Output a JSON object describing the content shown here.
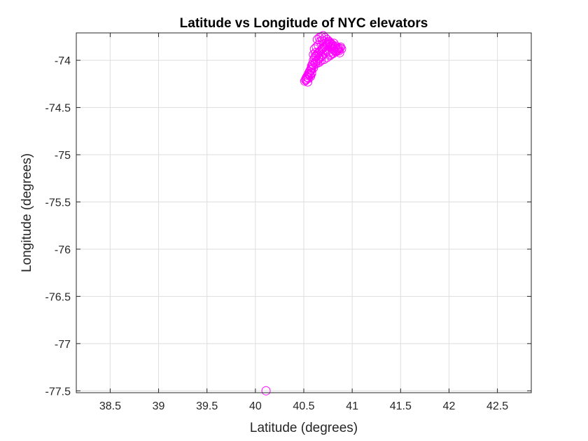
{
  "chart_data": {
    "type": "scatter",
    "title": "Latitude vs Longitude of NYC elevators",
    "xlabel": "Latitude (degrees)",
    "ylabel": "Longitude (degrees)",
    "xlim": [
      38.15,
      42.85
    ],
    "ylim": [
      -77.52,
      -73.71
    ],
    "xticks": [
      38.5,
      39,
      39.5,
      40,
      40.5,
      41,
      41.5,
      42,
      42.5
    ],
    "yticks": [
      -74,
      -74.5,
      -75,
      -75.5,
      -76,
      -76.5,
      -77,
      -77.5
    ],
    "xtick_labels": [
      "38.5",
      "39",
      "39.5",
      "40",
      "40.5",
      "41",
      "41.5",
      "42",
      "42.5"
    ],
    "ytick_labels": [
      "-74",
      "-74.5",
      "-75",
      "-75.5",
      "-76",
      "-76.5",
      "-77",
      "-77.5"
    ],
    "grid": true,
    "marker": "circle",
    "marker_color": "#ff00ff",
    "series": [
      {
        "x": [
          40.11,
          40.51,
          40.52,
          40.53,
          40.54,
          40.55,
          40.56,
          40.57,
          40.58,
          40.59,
          40.6,
          40.61,
          40.62,
          40.63,
          40.64,
          40.65,
          40.66,
          40.67,
          40.68,
          40.69,
          40.7,
          40.71,
          40.72,
          40.73,
          40.74,
          40.75,
          40.76,
          40.77,
          40.78,
          40.79,
          40.8,
          40.81,
          40.82,
          40.83,
          40.84,
          40.85,
          40.86,
          40.87,
          40.88,
          40.89,
          40.6,
          40.62,
          40.64,
          40.66,
          40.68,
          40.7,
          40.72,
          40.74,
          40.76,
          40.78,
          40.8,
          40.82,
          40.84,
          40.86,
          40.62,
          40.64,
          40.66,
          40.68,
          40.7,
          40.72,
          40.74,
          40.76,
          40.78,
          40.8,
          40.58,
          40.6,
          40.62,
          40.64,
          40.66,
          40.56,
          40.58,
          40.6,
          40.54,
          40.56,
          40.58,
          40.53,
          40.55,
          40.57,
          40.52,
          40.54,
          40.56,
          40.58,
          40.61,
          40.63,
          40.65,
          40.67,
          40.69,
          40.71,
          40.73,
          40.75,
          40.77,
          40.79,
          40.81,
          40.83,
          40.85,
          40.87,
          40.65,
          40.68,
          40.71,
          40.74,
          40.77,
          40.8
        ],
        "y": [
          -77.5,
          -74.22,
          -74.2,
          -74.18,
          -74.16,
          -74.14,
          -74.12,
          -74.1,
          -74.08,
          -74.04,
          -74.0,
          -73.98,
          -73.96,
          -73.95,
          -73.93,
          -73.92,
          -73.91,
          -73.9,
          -73.89,
          -73.88,
          -73.87,
          -73.86,
          -73.85,
          -73.84,
          -73.83,
          -73.82,
          -73.81,
          -73.83,
          -73.85,
          -73.87,
          -73.88,
          -73.89,
          -73.9,
          -73.91,
          -73.9,
          -73.89,
          -73.88,
          -73.87,
          -73.86,
          -73.88,
          -73.94,
          -73.92,
          -73.78,
          -73.76,
          -73.75,
          -73.74,
          -73.76,
          -73.78,
          -73.8,
          -73.82,
          -73.84,
          -73.86,
          -73.88,
          -73.9,
          -74.02,
          -74.0,
          -73.98,
          -73.96,
          -73.94,
          -73.92,
          -73.9,
          -73.92,
          -73.94,
          -73.92,
          -74.06,
          -74.05,
          -74.04,
          -74.03,
          -74.02,
          -74.12,
          -74.1,
          -74.08,
          -74.18,
          -74.16,
          -74.14,
          -74.2,
          -74.19,
          -74.17,
          -74.21,
          -74.23,
          -74.15,
          -74.13,
          -73.88,
          -73.86,
          -73.84,
          -73.8,
          -73.79,
          -73.8,
          -73.82,
          -73.84,
          -73.86,
          -73.84,
          -73.82,
          -73.85,
          -73.87,
          -73.92,
          -73.98,
          -74.0,
          -73.99,
          -73.97,
          -73.95,
          -73.93
        ]
      }
    ]
  }
}
